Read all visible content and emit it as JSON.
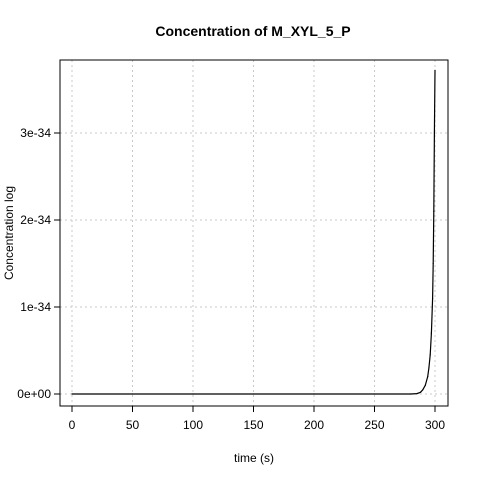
{
  "chart_data": {
    "type": "line",
    "title": "Concentration of M_XYL_5_P",
    "xlabel": "time (s)",
    "ylabel": "Concentration log",
    "xlim": [
      0,
      300
    ],
    "ylim": [
      -1e-35,
      3.75e-34
    ],
    "x_ticks": [
      0,
      50,
      100,
      150,
      200,
      250,
      300
    ],
    "x_tick_labels": [
      "0",
      "50",
      "100",
      "150",
      "200",
      "250",
      "300"
    ],
    "y_ticks": [
      0,
      1e-34,
      2e-34,
      3e-34
    ],
    "y_tick_labels": [
      "0e+00",
      "1e-34",
      "2e-34",
      "3e-34"
    ],
    "grid": true,
    "series": [
      {
        "x": [
          0,
          50,
          100,
          150,
          200,
          250,
          280,
          285,
          288,
          290,
          292,
          294,
          295,
          296,
          297,
          298,
          298.5,
          299,
          299.5,
          300
        ],
        "y": [
          0,
          0,
          0,
          0,
          0,
          0,
          0,
          5e-37,
          2e-36,
          5e-36,
          1e-35,
          2e-35,
          3e-35,
          4.5e-35,
          7e-35,
          1.1e-34,
          1.5e-34,
          2.1e-34,
          3e-34,
          3.72e-34
        ]
      }
    ]
  }
}
